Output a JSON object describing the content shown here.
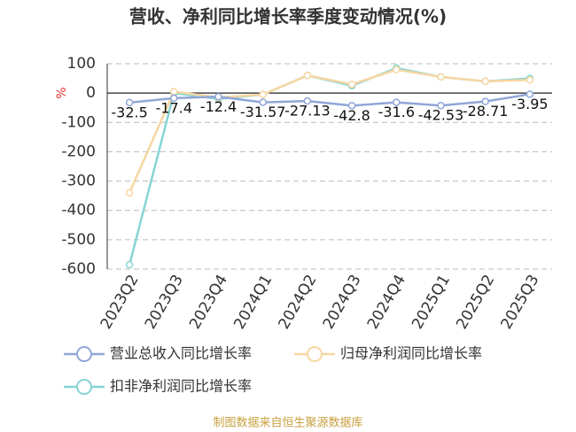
{
  "chart_data": {
    "type": "line",
    "title": "营收、净利同比增长率季度变动情况(%)",
    "y_label": "%",
    "source": "制图数据来自恒生聚源数据库",
    "categories": [
      "2023Q2",
      "2023Q3",
      "2023Q4",
      "2024Q1",
      "2024Q2",
      "2024Q3",
      "2024Q4",
      "2025Q1",
      "2025Q2",
      "2025Q3"
    ],
    "series": [
      {
        "name": "营业总收入同比增长率",
        "color": "#8fa6d8",
        "values": [
          -32.5,
          -17.4,
          -12.4,
          -31.57,
          -27.13,
          -42.8,
          -31.6,
          -42.53,
          -28.71,
          -3.95
        ]
      },
      {
        "name": "归母净利润同比增长率",
        "color": "#f7d6a2",
        "values": [
          -340,
          5,
          -15,
          -5,
          60,
          30,
          80,
          55,
          40,
          45
        ]
      },
      {
        "name": "扣非净利润同比增长率",
        "color": "#86d4d4",
        "values": [
          -585,
          0,
          -20,
          -5,
          60,
          25,
          85,
          55,
          40,
          50
        ]
      }
    ],
    "ylim": [
      -600,
      100
    ],
    "yticks": [
      -600,
      -500,
      -400,
      -300,
      -200,
      -100,
      0,
      100
    ],
    "grid": true
  }
}
